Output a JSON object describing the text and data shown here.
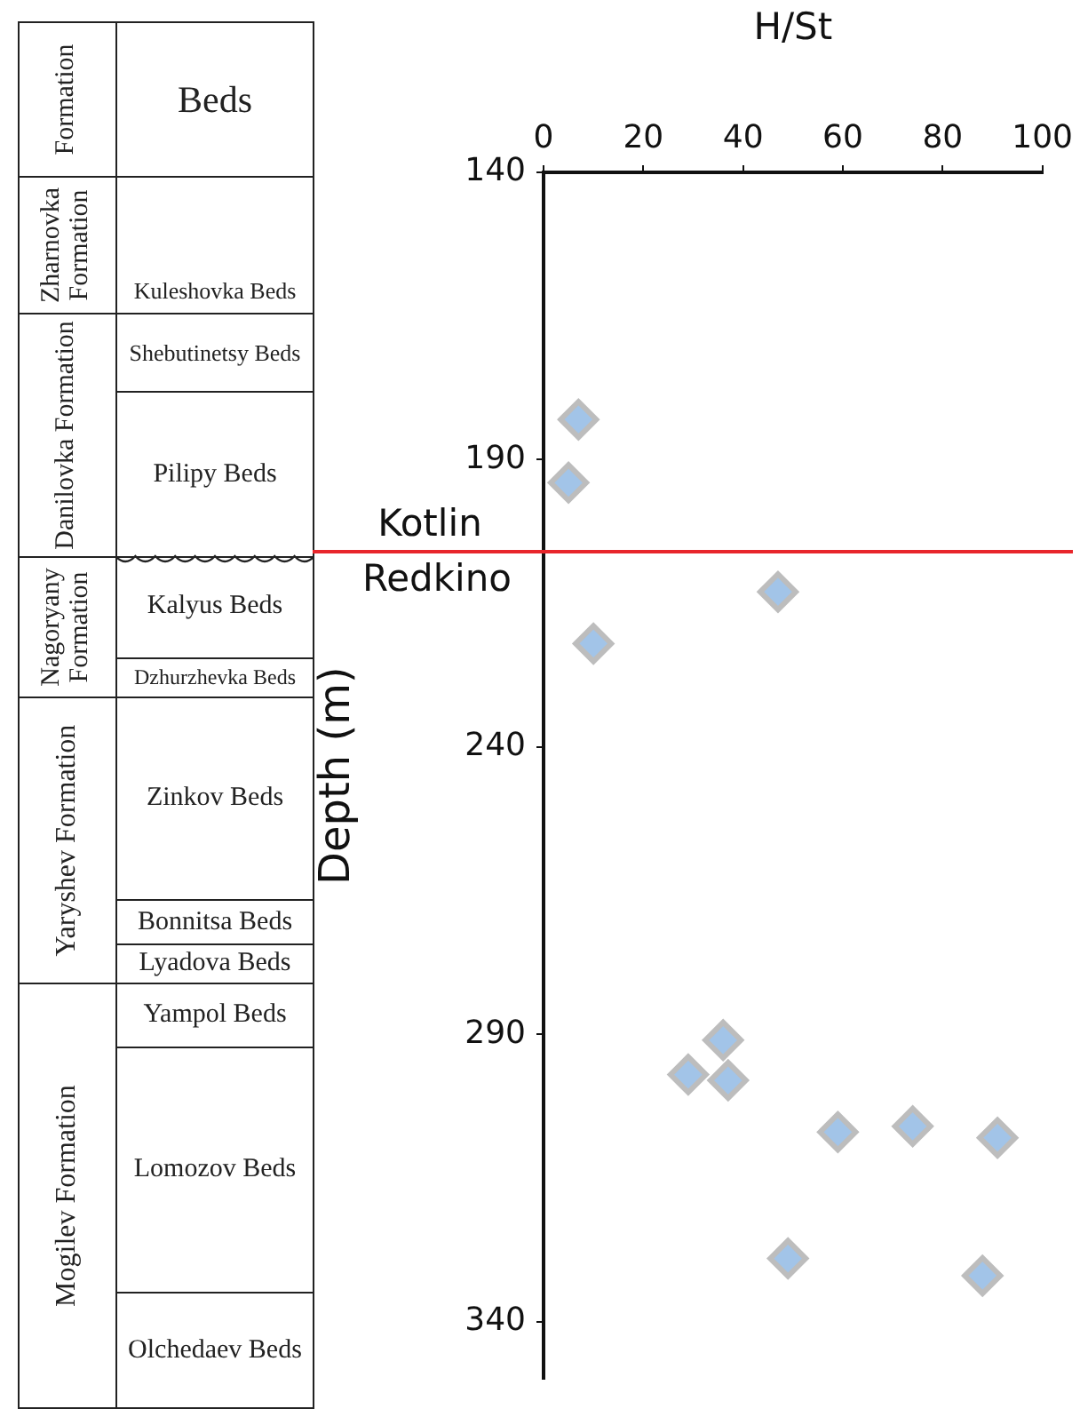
{
  "chart_data": [
    {
      "type": "other",
      "annotations": [
        "Formation",
        "Beds",
        "Zharnovka Formation",
        "Kuleshovka Beds",
        "Danilovka Formation",
        "Shebutinetsy Beds",
        "Pilipy Beds",
        "Nagoryany Formation",
        "Kalyus Beds",
        "Dzhurzhevka Beds",
        "Yaryshev Formation",
        "Zinkov Beds",
        "Bonnitsa Beds",
        "Lyadova Beds",
        "Mogilev Formation",
        "Yampol Beds",
        "Lomozov Beds",
        "Olchedaev Beds"
      ]
    },
    {
      "type": "scatter",
      "xlabel": "H/St",
      "ylabel": "Depth (m)",
      "x": [
        7,
        5,
        47,
        10,
        36,
        29,
        37,
        59,
        74,
        91,
        49,
        88
      ],
      "values": [
        183,
        194,
        213,
        222,
        291,
        297,
        298,
        307,
        306,
        308,
        329,
        332
      ],
      "color": "#a2c4e8",
      "marker": "diamond",
      "xlim": [
        0,
        100
      ],
      "xticks": [
        0,
        20,
        40,
        60,
        80,
        100
      ],
      "ylim": [
        350,
        140
      ],
      "yticks": [
        140,
        190,
        240,
        290,
        340
      ],
      "ref_lines": [
        {
          "axis": "y",
          "value": 206,
          "color": "#e8262b"
        }
      ],
      "annotations": [
        "Kotlin",
        "Redkino"
      ]
    }
  ]
}
